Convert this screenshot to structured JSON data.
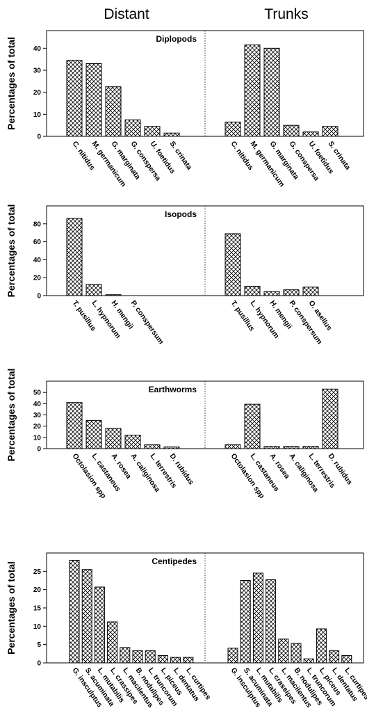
{
  "figure": {
    "column_titles": [
      "Distant",
      "Trunks"
    ]
  },
  "chart_data": [
    {
      "type": "bar",
      "title": "Diplopods",
      "ylabel": "Percentages of total",
      "ylim": [
        0,
        48
      ],
      "yticks": [
        0,
        10,
        20,
        30,
        40
      ],
      "grid": false,
      "panels": [
        {
          "name": "Distant",
          "categories": [
            "C. nitidus",
            "M. germanicum",
            "G. marginata",
            "G. conspersa",
            "U. foetidus",
            "S. crinata"
          ],
          "values": [
            34.5,
            33,
            22.5,
            7.5,
            4.5,
            1.5
          ]
        },
        {
          "name": "Trunks",
          "categories": [
            "C. nitidus",
            "M. germanicum",
            "G. marginata",
            "G. conspersa",
            "U. foetidus",
            "S. crinata"
          ],
          "values": [
            6.5,
            41.5,
            40,
            5,
            2,
            4.5
          ]
        }
      ]
    },
    {
      "type": "bar",
      "title": "Isopods",
      "ylabel": "Percentages of total",
      "ylim": [
        0,
        100
      ],
      "yticks": [
        0,
        20,
        40,
        60,
        80
      ],
      "grid": false,
      "panels": [
        {
          "name": "Distant",
          "categories": [
            "T. pusillus",
            "L. hypnorum",
            "H. mengii",
            "P. conspersum"
          ],
          "values": [
            86,
            12.5,
            1,
            0
          ]
        },
        {
          "name": "Trunks",
          "categories": [
            "T. pusillus",
            "L. hypnorum",
            "H. mengii",
            "P. conspersum",
            "O. asellus"
          ],
          "values": [
            69,
            10.5,
            4.5,
            6.5,
            9.5
          ]
        }
      ]
    },
    {
      "type": "bar",
      "title": "Earthworms",
      "ylabel": "Percentages of total",
      "ylim": [
        0,
        60
      ],
      "yticks": [
        0,
        10,
        20,
        30,
        40,
        50
      ],
      "grid": false,
      "panels": [
        {
          "name": "Distant",
          "categories": [
            "Octolasion spp",
            "L. castaneus",
            "A. rosea",
            "A. caliginosa",
            "L. terrestris",
            "D. rubidus"
          ],
          "values": [
            41,
            25,
            18,
            12,
            3.5,
            1.5
          ]
        },
        {
          "name": "Trunks",
          "categories": [
            "Octolasion spp",
            "L. castaneus",
            "A. rosea",
            "A. caliginosa",
            "L. terrestris",
            "D. rubidus"
          ],
          "values": [
            3.5,
            39.5,
            2,
            2,
            2,
            53
          ]
        }
      ]
    },
    {
      "type": "bar",
      "title": "Centipedes",
      "ylabel": "Percentages of total",
      "ylim": [
        0,
        30
      ],
      "yticks": [
        0,
        5,
        10,
        15,
        20,
        25
      ],
      "grid": false,
      "panels": [
        {
          "name": "Distant",
          "categories": [
            "G. insculptus",
            "S. acuminata",
            "L. mutabilis",
            "L. crassipes",
            "L. macilentus",
            "B. nodulipes",
            "L. truncorum",
            "L. piceus",
            "L. dentatus",
            "L. curtipes"
          ],
          "values": [
            28,
            25.5,
            20.7,
            11.2,
            4.2,
            3.3,
            3.3,
            2,
            1.5,
            1.5
          ]
        },
        {
          "name": "Trunks",
          "categories": [
            "G. insculptus",
            "S. acuminata",
            "L. mutabilis",
            "L. crassipes",
            "L. macilentus",
            "B. nodulipes",
            "L. truncorum",
            "L. piceus",
            "L. dentatus",
            "L. curtipes"
          ],
          "values": [
            4,
            22.5,
            24.5,
            22.7,
            6.5,
            5.3,
            1.1,
            9.3,
            3.3,
            2
          ]
        }
      ]
    }
  ]
}
